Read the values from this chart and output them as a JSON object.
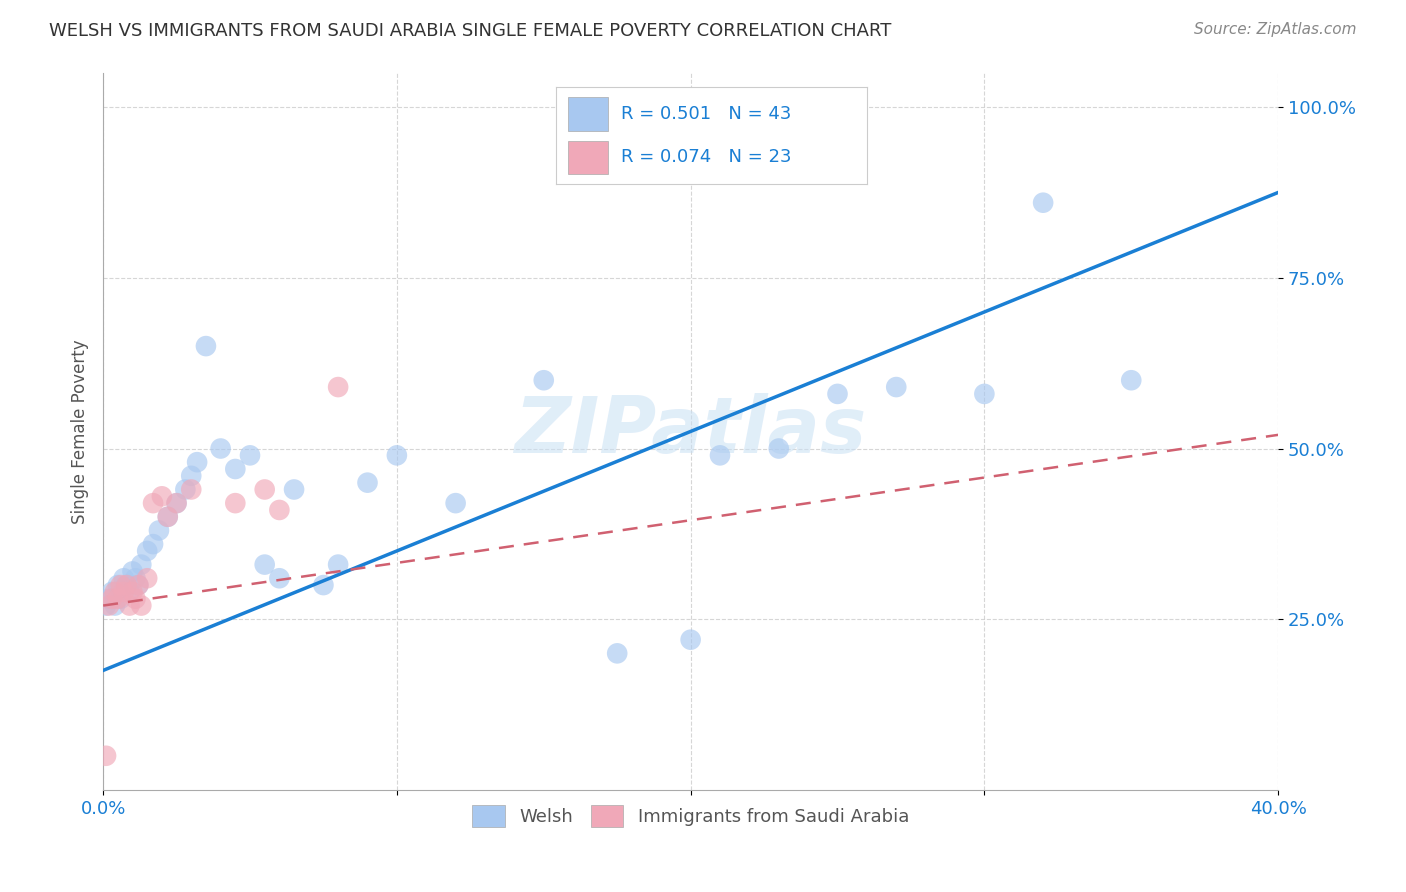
{
  "title": "WELSH VS IMMIGRANTS FROM SAUDI ARABIA SINGLE FEMALE POVERTY CORRELATION CHART",
  "source": "Source: ZipAtlas.com",
  "ylabel": "Single Female Poverty",
  "watermark": "ZIPatlas",
  "legend_label1": "Welsh",
  "legend_label2": "Immigrants from Saudi Arabia",
  "xlim": [
    0.0,
    0.4
  ],
  "ylim": [
    0.0,
    1.05
  ],
  "color_blue": "#a8c8f0",
  "color_pink": "#f0a8b8",
  "line_blue": "#1a7fd4",
  "line_pink": "#d06070",
  "background": "#ffffff",
  "welsh_x": [
    0.001,
    0.002,
    0.003,
    0.004,
    0.005,
    0.006,
    0.007,
    0.008,
    0.009,
    0.01,
    0.011,
    0.012,
    0.013,
    0.015,
    0.017,
    0.019,
    0.022,
    0.025,
    0.028,
    0.03,
    0.032,
    0.035,
    0.04,
    0.045,
    0.05,
    0.055,
    0.06,
    0.065,
    0.075,
    0.08,
    0.09,
    0.1,
    0.12,
    0.15,
    0.175,
    0.2,
    0.21,
    0.23,
    0.25,
    0.27,
    0.3,
    0.32,
    0.35
  ],
  "welsh_y": [
    0.27,
    0.28,
    0.29,
    0.27,
    0.3,
    0.28,
    0.31,
    0.3,
    0.29,
    0.32,
    0.31,
    0.3,
    0.33,
    0.35,
    0.36,
    0.38,
    0.4,
    0.42,
    0.44,
    0.46,
    0.48,
    0.65,
    0.5,
    0.47,
    0.49,
    0.33,
    0.31,
    0.44,
    0.3,
    0.33,
    0.45,
    0.49,
    0.42,
    0.6,
    0.2,
    0.22,
    0.49,
    0.5,
    0.58,
    0.59,
    0.58,
    0.86,
    0.6
  ],
  "saudi_x": [
    0.001,
    0.002,
    0.003,
    0.004,
    0.005,
    0.006,
    0.007,
    0.008,
    0.009,
    0.01,
    0.011,
    0.012,
    0.013,
    0.015,
    0.017,
    0.02,
    0.022,
    0.025,
    0.03,
    0.045,
    0.055,
    0.06,
    0.08
  ],
  "saudi_y": [
    0.05,
    0.27,
    0.28,
    0.29,
    0.28,
    0.3,
    0.29,
    0.3,
    0.27,
    0.29,
    0.28,
    0.3,
    0.27,
    0.31,
    0.42,
    0.43,
    0.4,
    0.42,
    0.44,
    0.42,
    0.44,
    0.41,
    0.59
  ],
  "blue_line_x": [
    0.0,
    0.4
  ],
  "blue_line_y": [
    0.175,
    0.875
  ],
  "pink_line_x": [
    0.0,
    0.4
  ],
  "pink_line_y": [
    0.27,
    0.52
  ]
}
